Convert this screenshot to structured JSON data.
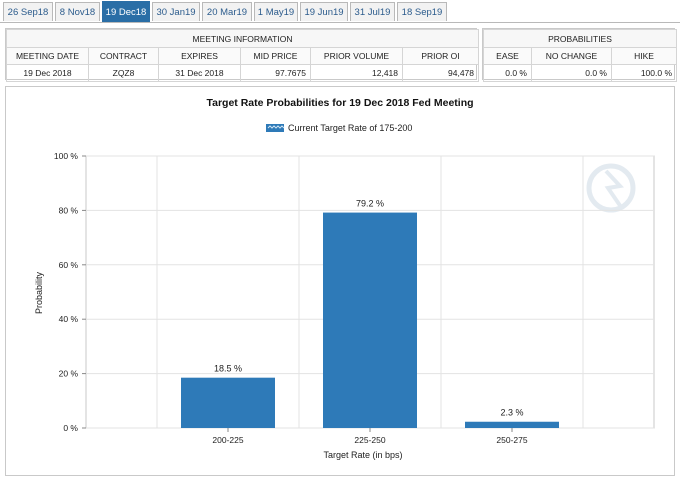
{
  "tabs": [
    {
      "label": "26 Sep18",
      "active": false
    },
    {
      "label": "8 Nov18",
      "active": false
    },
    {
      "label": "19 Dec18",
      "active": true
    },
    {
      "label": "30 Jan19",
      "active": false
    },
    {
      "label": "20 Mar19",
      "active": false
    },
    {
      "label": "1 May19",
      "active": false
    },
    {
      "label": "19 Jun19",
      "active": false
    },
    {
      "label": "31 Jul19",
      "active": false
    },
    {
      "label": "18 Sep19",
      "active": false
    }
  ],
  "meeting_info": {
    "title": "MEETING INFORMATION",
    "headers": [
      "MEETING DATE",
      "CONTRACT",
      "EXPIRES",
      "MID PRICE",
      "PRIOR VOLUME",
      "PRIOR OI"
    ],
    "values": [
      "19 Dec 2018",
      "ZQZ8",
      "31 Dec 2018",
      "97.7675",
      "12,418",
      "94,478"
    ]
  },
  "probabilities": {
    "title": "PROBABILITIES",
    "headers": [
      "EASE",
      "NO CHANGE",
      "HIKE"
    ],
    "values": [
      "0.0 %",
      "0.0 %",
      "100.0 %"
    ]
  },
  "chart_data": {
    "type": "bar",
    "title": "Target Rate Probabilities for 19 Dec 2018 Fed Meeting",
    "legend": "Current Target Rate of 175-200",
    "xlabel": "Target Rate (in bps)",
    "ylabel": "Probability",
    "categories": [
      "200-225",
      "225-250",
      "250-275"
    ],
    "values": [
      18.5,
      79.2,
      2.3
    ],
    "data_labels": [
      "18.5 %",
      "79.2 %",
      "2.3 %"
    ],
    "ylim": [
      0,
      100
    ],
    "yticks": [
      0,
      20,
      40,
      60,
      80,
      100
    ],
    "ytick_labels": [
      "0 %",
      "20 %",
      "40 %",
      "60 %",
      "80 %",
      "100 %"
    ],
    "grid": true,
    "colors": {
      "bar": "#2e7ab8",
      "grid": "#e3e3e3",
      "legend_swatch": "#2e7ab8"
    }
  }
}
